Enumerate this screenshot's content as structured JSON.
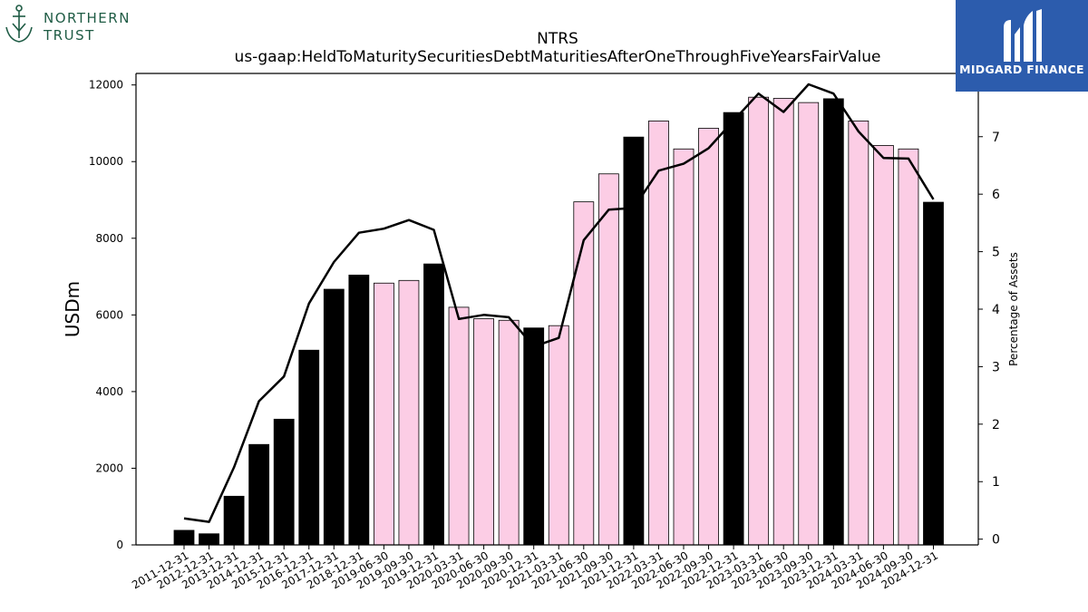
{
  "branding": {
    "left_logo_line1": "NORTHERN",
    "left_logo_line2": "TRUST",
    "left_logo_color": "#1f5c45",
    "right_logo_text": "MIDGARD FINANCE",
    "right_logo_bg": "#2c5cad"
  },
  "chart_data": {
    "type": "bar",
    "title": "NTRS",
    "subtitle": "us-gaap:HeldToMaturitySecuritiesDebtMaturitiesAfterOneThroughFiveYearsFairValue",
    "ylabel": "USDm",
    "y2label": "Percentage of Assets",
    "ylim": [
      0,
      12300
    ],
    "y2lim": [
      -0.1,
      8.1
    ],
    "yticks": [
      0,
      2000,
      4000,
      6000,
      8000,
      10000,
      12000
    ],
    "y2ticks": [
      0,
      1,
      2,
      3,
      4,
      5,
      6,
      7,
      8
    ],
    "categories": [
      "2011-12-31",
      "2012-12-31",
      "2013-12-31",
      "2014-12-31",
      "2015-12-31",
      "2016-12-31",
      "2017-12-31",
      "2018-12-31",
      "2019-06-30",
      "2019-09-30",
      "2019-12-31",
      "2020-03-31",
      "2020-06-30",
      "2020-09-30",
      "2020-12-31",
      "2021-03-31",
      "2021-06-30",
      "2021-09-30",
      "2021-12-31",
      "2022-03-31",
      "2022-06-30",
      "2022-09-30",
      "2022-12-31",
      "2023-03-31",
      "2023-06-30",
      "2023-09-30",
      "2023-12-31",
      "2024-03-31",
      "2024-06-30",
      "2024-09-30",
      "2024-12-31"
    ],
    "series": [
      {
        "type": "bar",
        "values": [
          380,
          290,
          1270,
          2620,
          3280,
          5080,
          6670,
          7040,
          6830,
          6900,
          7330,
          6200,
          5900,
          5860,
          5660,
          5720,
          8950,
          9680,
          10640,
          11060,
          10330,
          10870,
          11280,
          11680,
          11650,
          11540,
          11640,
          11060,
          10420,
          10330,
          8940
        ],
        "colors": [
          "#000000",
          "#000000",
          "#000000",
          "#000000",
          "#000000",
          "#000000",
          "#000000",
          "#000000",
          "#fccde5",
          "#fccde5",
          "#000000",
          "#fccde5",
          "#fccde5",
          "#fccde5",
          "#000000",
          "#fccde5",
          "#fccde5",
          "#fccde5",
          "#000000",
          "#fccde5",
          "#fccde5",
          "#fccde5",
          "#000000",
          "#fccde5",
          "#fccde5",
          "#fccde5",
          "#000000",
          "#fccde5",
          "#fccde5",
          "#fccde5",
          "#000000"
        ]
      },
      {
        "type": "line",
        "axis": "right",
        "color": "#000000",
        "values": [
          0.36,
          0.3,
          1.25,
          2.4,
          2.83,
          4.1,
          4.82,
          5.33,
          5.4,
          5.55,
          5.38,
          3.83,
          3.9,
          3.86,
          3.35,
          3.5,
          5.2,
          5.73,
          5.76,
          6.41,
          6.53,
          6.8,
          7.28,
          7.75,
          7.43,
          7.91,
          7.75,
          7.09,
          6.63,
          6.62,
          5.91
        ]
      }
    ],
    "grid": false,
    "legend": "none"
  }
}
